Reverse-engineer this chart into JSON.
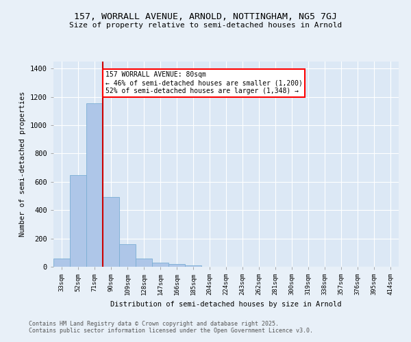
{
  "title1": "157, WORRALL AVENUE, ARNOLD, NOTTINGHAM, NG5 7GJ",
  "title2": "Size of property relative to semi-detached houses in Arnold",
  "xlabel": "Distribution of semi-detached houses by size in Arnold",
  "ylabel": "Number of semi-detached properties",
  "categories": [
    "33sqm",
    "52sqm",
    "71sqm",
    "90sqm",
    "109sqm",
    "128sqm",
    "147sqm",
    "166sqm",
    "185sqm",
    "204sqm",
    "224sqm",
    "243sqm",
    "262sqm",
    "281sqm",
    "300sqm",
    "319sqm",
    "338sqm",
    "357sqm",
    "376sqm",
    "395sqm",
    "414sqm"
  ],
  "values": [
    57,
    648,
    1155,
    493,
    160,
    57,
    28,
    17,
    12,
    0,
    0,
    0,
    0,
    0,
    0,
    0,
    0,
    0,
    0,
    0,
    0
  ],
  "bar_color": "#aec6e8",
  "bar_edge_color": "#7aaed4",
  "red_line_x": 2.5,
  "annotation_text": "157 WORRALL AVENUE: 80sqm\n← 46% of semi-detached houses are smaller (1,200)\n52% of semi-detached houses are larger (1,348) →",
  "ylim": [
    0,
    1450
  ],
  "yticks": [
    0,
    200,
    400,
    600,
    800,
    1000,
    1200,
    1400
  ],
  "background_color": "#e8f0f8",
  "plot_bg_color": "#dce8f5",
  "grid_color": "#ffffff",
  "footer1": "Contains HM Land Registry data © Crown copyright and database right 2025.",
  "footer2": "Contains public sector information licensed under the Open Government Licence v3.0."
}
